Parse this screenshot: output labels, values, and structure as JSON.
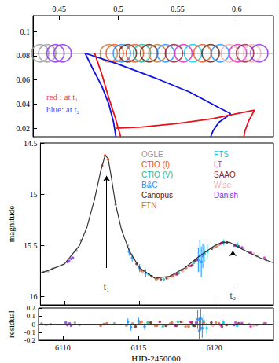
{
  "chart_data": [
    {
      "type": "line",
      "xlim": [
        0.428,
        0.631
      ],
      "xticks": [
        0.45,
        0.5,
        0.55,
        0.6
      ],
      "ylim": [
        0.013,
        0.113
      ],
      "yticks": [
        0.02,
        0.04,
        0.06,
        0.08,
        0.1
      ],
      "grid": false,
      "series": [
        {
          "type": "line",
          "color": "#000000",
          "x": [
            0.428,
            0.631
          ],
          "values": [
            0.082,
            0.082
          ]
        },
        {
          "type": "scatter",
          "marker": "open_circle",
          "x": [
            0.434,
            0.44,
            0.447,
            0.453,
            0.492,
            0.497,
            0.503,
            0.508,
            0.514,
            0.52,
            0.526,
            0.533,
            0.54,
            0.547,
            0.555,
            0.563,
            0.571,
            0.578,
            0.586,
            0.594,
            0.601,
            0.607,
            0.613,
            0.619
          ],
          "values": [
            0.082,
            0.082,
            0.082,
            0.082,
            0.082,
            0.082,
            0.082,
            0.082,
            0.082,
            0.082,
            0.082,
            0.082,
            0.082,
            0.082,
            0.082,
            0.082,
            0.082,
            0.082,
            0.082,
            0.082,
            0.082,
            0.082,
            0.082,
            0.082
          ],
          "colors": [
            "#999999",
            "#999999",
            "#8a2be2",
            "#8a2be2",
            "#c87533",
            "#e8501e",
            "#1e90ff",
            "#5c1a0a",
            "#e8501e",
            "#1fb89a",
            "#5c1a0a",
            "#c87533",
            "#1e90ff",
            "#8b1a3a",
            "#e020c0",
            "#00c8e8",
            "#e8501e",
            "#5c1a0a",
            "#1e90ff",
            "#f0b0b0",
            "#e020c0",
            "#8b1a3a",
            "#f0b0b0",
            "#8a2be2"
          ]
        },
        {
          "type": "line",
          "color": "#1010e0",
          "x": [
            0.472,
            0.478,
            0.486,
            0.492,
            0.496,
            0.498,
            null,
            0.472,
            0.5,
            0.53,
            0.56,
            0.585,
            0.595,
            null,
            0.595,
            0.585,
            0.58,
            0.578
          ],
          "values": [
            0.082,
            0.07,
            0.055,
            0.04,
            0.025,
            0.013,
            null,
            0.082,
            0.073,
            0.062,
            0.05,
            0.037,
            0.032,
            null,
            0.032,
            0.025,
            0.018,
            0.013
          ]
        },
        {
          "type": "line",
          "color": "#e8101a",
          "x": [
            0.48,
            0.486,
            0.492,
            0.497,
            0.502,
            null,
            0.498,
            0.52,
            0.55,
            0.58,
            0.6,
            0.615,
            null,
            0.615,
            0.61,
            0.607,
            0.606
          ],
          "values": [
            0.082,
            0.065,
            0.045,
            0.03,
            0.013,
            null,
            0.02,
            0.021,
            0.024,
            0.028,
            0.032,
            0.035,
            null,
            0.035,
            0.026,
            0.018,
            0.013
          ]
        }
      ],
      "annotations": [
        {
          "text": "red : at t₁",
          "x": 0.436,
          "y": 0.046,
          "color": "#e8101a"
        },
        {
          "text": "blue: at t₂",
          "x": 0.436,
          "y": 0.036,
          "color": "#1010e0"
        }
      ]
    },
    {
      "type": "scatter",
      "ylabel": "magnitude",
      "xlim": [
        6108.4,
        6123.9
      ],
      "xticks": [
        6110,
        6115,
        6120
      ],
      "ylim": [
        16.08,
        14.5
      ],
      "yticks": [
        14.5,
        15,
        15.5,
        16
      ],
      "grid": false,
      "tick_labels": "y",
      "legend": "upper right",
      "series": [
        {
          "type": "line",
          "color": "#333333",
          "x": [
            6108.4,
            6109,
            6110,
            6111,
            6111.5,
            6112,
            6112.4,
            6112.7,
            6112.9,
            6113.1,
            6113.4,
            6113.8,
            6114.3,
            6115,
            6116,
            6117,
            6118,
            6119,
            6120,
            6120.5,
            6121,
            6122,
            6123,
            6123.9
          ],
          "values": [
            15.77,
            15.74,
            15.68,
            15.5,
            15.32,
            15.05,
            14.78,
            14.62,
            14.65,
            14.82,
            15.1,
            15.35,
            15.55,
            15.72,
            15.82,
            15.8,
            15.72,
            15.6,
            15.5,
            15.47,
            15.47,
            15.55,
            15.62,
            15.67
          ]
        },
        {
          "name": "OGLE",
          "color": "#999999",
          "x": [
            6108.6,
            6108.9,
            6109.2,
            6110.8,
            6111.1,
            6113.4,
            6114.2,
            6114.6,
            6122.3,
            6122.8,
            6123.4
          ],
          "values": [
            15.76,
            15.75,
            15.73,
            15.55,
            15.45,
            15.1,
            15.5,
            15.63,
            15.57,
            15.6,
            15.64
          ]
        },
        {
          "name": "CTIO (I)",
          "color": "#e8501e",
          "x": [
            6112.5,
            6112.7,
            6112.9,
            6115.2,
            6116.2,
            6117.2,
            6118.3,
            6119.3,
            6120.3
          ],
          "values": [
            14.72,
            14.62,
            14.66,
            15.75,
            15.82,
            15.8,
            15.7,
            15.58,
            15.49
          ]
        },
        {
          "name": "CTIO (V)",
          "color": "#1fb89a",
          "x": [
            6115.6,
            6116.6,
            6117.6,
            6118.6
          ],
          "values": [
            15.78,
            15.83,
            15.77,
            15.67
          ]
        },
        {
          "name": "B&C",
          "color": "#1e90ff",
          "x": [
            6114.3,
            6114.5,
            6115,
            6115.4,
            6118.9,
            6119,
            6119.1,
            6119.2
          ],
          "values": [
            15.56,
            15.62,
            15.72,
            15.77,
            15.64,
            15.6,
            15.66,
            15.6
          ],
          "errors": [
            0.04,
            0.04,
            0.04,
            0.04,
            0.12,
            0.16,
            0.15,
            0.12
          ]
        },
        {
          "name": "Canopus",
          "color": "#5c1a0a",
          "x": [
            6114.8,
            6115.8,
            6116.8,
            6117.8,
            6118.7,
            6119.8,
            6120.8
          ],
          "values": [
            15.68,
            15.8,
            15.82,
            15.74,
            15.65,
            15.53,
            15.47
          ]
        },
        {
          "name": "FTN",
          "color": "#c87533",
          "x": [
            6115.1,
            6116.1,
            6117.1,
            6118.1,
            6120.1
          ],
          "values": [
            15.74,
            15.83,
            15.8,
            15.72,
            15.51
          ]
        },
        {
          "name": "FTS",
          "color": "#00c8e8",
          "x": [
            6119.3,
            6119.5,
            6120.6,
            6121.5
          ],
          "values": [
            15.58,
            15.56,
            15.47,
            15.5
          ],
          "errors": [
            0.08,
            0.07,
            0.03,
            0.03
          ]
        },
        {
          "name": "LT",
          "color": "#e020c0",
          "x": [
            6117.4,
            6118.4,
            6120.4,
            6121.4,
            6122.4,
            6123.3
          ],
          "values": [
            15.78,
            15.7,
            15.48,
            15.5,
            15.57,
            15.62
          ]
        },
        {
          "name": "SAAO",
          "color": "#8b1a3a",
          "x": [
            6116.4,
            6117.5,
            6118.5,
            6120.5,
            6121.6
          ],
          "values": [
            15.83,
            15.78,
            15.69,
            15.47,
            15.51
          ]
        },
        {
          "name": "Wise",
          "color": "#f0b0b0",
          "x": [
            6116.9,
            6117.9,
            6119.9,
            6121.9,
            6122.6
          ],
          "values": [
            15.82,
            15.75,
            15.52,
            15.53,
            15.58
          ]
        },
        {
          "name": "Danish",
          "color": "#8a2be2",
          "x": [
            6110.2,
            6110.3,
            6110.45,
            6110.55,
            6118.8,
            6121.3,
            6121.8
          ],
          "values": [
            15.66,
            15.65,
            15.63,
            15.62,
            15.64,
            15.5,
            15.52
          ]
        }
      ],
      "annotations": [
        {
          "text": "t₁",
          "x": 6112.8,
          "y": 15.9,
          "arrow": [
            15.72,
            14.82
          ]
        },
        {
          "text": "t₂",
          "x": 6121.2,
          "y": 15.99,
          "arrow": [
            15.88,
            15.55
          ]
        }
      ]
    },
    {
      "type": "scatter",
      "xlabel": "HJD-2450000",
      "ylabel": "residual",
      "xlim": [
        6108.4,
        6123.9
      ],
      "xticks": [
        6110,
        6115,
        6120
      ],
      "ylim": [
        -0.2,
        0.2
      ],
      "yticks": [
        -0.2,
        -0.1,
        0,
        0.1,
        0.2
      ],
      "grid": false,
      "series": [
        {
          "type": "line",
          "color": "#333333",
          "x": [
            6108.4,
            6123.9
          ],
          "values": [
            0,
            0
          ]
        },
        {
          "name": "OGLE",
          "color": "#999999",
          "x": [
            6108.6,
            6108.9,
            6109.2,
            6110.8,
            6111.1,
            6113.4,
            6114.2,
            6114.6,
            6122.3,
            6122.8,
            6123.4
          ],
          "values": [
            0.01,
            -0.01,
            0,
            0.02,
            -0.01,
            0.01,
            -0.02,
            0.01,
            0,
            -0.01,
            0.01
          ]
        },
        {
          "name": "CTIO (I)",
          "color": "#e8501e",
          "x": [
            6112.5,
            6112.7,
            6112.9,
            6115.2,
            6116.2,
            6117.2,
            6118.3,
            6119.3,
            6120.3
          ],
          "values": [
            -0.02,
            0,
            0.01,
            0.03,
            -0.02,
            0.02,
            -0.03,
            0.02,
            0.01
          ]
        },
        {
          "name": "CTIO (V)",
          "color": "#1fb89a",
          "x": [
            6115.6,
            6116.6,
            6117.6,
            6118.6
          ],
          "values": [
            0.02,
            -0.03,
            0.03,
            -0.02
          ]
        },
        {
          "name": "B&C",
          "color": "#1e90ff",
          "x": [
            6114.3,
            6114.5,
            6115,
            6115.4,
            6118.9,
            6119,
            6119.1,
            6119.2
          ],
          "values": [
            0.03,
            -0.04,
            0.04,
            -0.03,
            0.06,
            -0.08,
            0.07,
            -0.05
          ],
          "errors": [
            0.04,
            0.04,
            0.04,
            0.04,
            0.12,
            0.16,
            0.15,
            0.12
          ]
        },
        {
          "name": "Canopus",
          "color": "#5c1a0a",
          "x": [
            6114.8,
            6115.8,
            6116.8,
            6117.8,
            6118.7,
            6119.8,
            6120.8
          ],
          "values": [
            -0.03,
            0.02,
            -0.02,
            0.03,
            -0.02,
            0.02,
            -0.01
          ]
        },
        {
          "name": "FTN",
          "color": "#c87533",
          "x": [
            6115.1,
            6116.1,
            6117.1,
            6118.1,
            6120.1
          ],
          "values": [
            0.02,
            -0.02,
            0.01,
            -0.03,
            0.02
          ]
        },
        {
          "name": "FTS",
          "color": "#00c8e8",
          "x": [
            6119.3,
            6119.5,
            6120.6,
            6121.5
          ],
          "values": [
            0.04,
            -0.05,
            0.02,
            -0.02
          ],
          "errors": [
            0.08,
            0.07,
            0.03,
            0.03
          ]
        },
        {
          "name": "LT",
          "color": "#e020c0",
          "x": [
            6117.4,
            6118.4,
            6120.4,
            6121.4,
            6122.4,
            6123.3
          ],
          "values": [
            -0.02,
            0.03,
            -0.01,
            0.02,
            -0.03,
            0.01
          ]
        },
        {
          "name": "SAAO",
          "color": "#8b1a3a",
          "x": [
            6116.4,
            6117.5,
            6118.5,
            6120.5,
            6121.6
          ],
          "values": [
            0.03,
            -0.02,
            0.02,
            -0.03,
            0.01
          ]
        },
        {
          "name": "Wise",
          "color": "#f0b0b0",
          "x": [
            6116.9,
            6117.9,
            6119.9,
            6121.9,
            6122.6
          ],
          "values": [
            -0.01,
            0.03,
            -0.02,
            0.02,
            -0.02
          ]
        },
        {
          "name": "Danish",
          "color": "#8a2be2",
          "x": [
            6110.2,
            6110.3,
            6110.45,
            6110.55,
            6118.8,
            6121.3,
            6121.8
          ],
          "values": [
            0.02,
            -0.01,
            0.01,
            -0.02,
            0.02,
            -0.01,
            0.01
          ]
        }
      ]
    }
  ]
}
